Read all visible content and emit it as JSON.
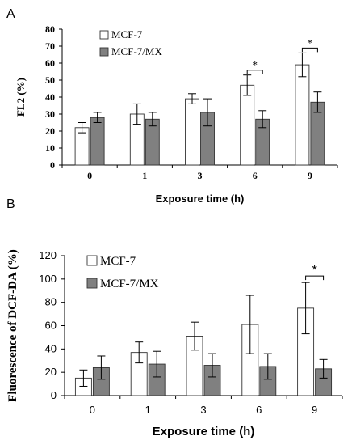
{
  "panels": {
    "a_label": "A",
    "b_label": "B"
  },
  "chart_data": [
    {
      "type": "bar",
      "title": "",
      "xlabel": "Exposure time (h)",
      "ylabel": "FL2 (%)",
      "categories": [
        "0",
        "1",
        "3",
        "6",
        "9"
      ],
      "ylim": [
        0,
        80
      ],
      "yticks": [
        0,
        10,
        20,
        30,
        40,
        50,
        60,
        70,
        80
      ],
      "grid": false,
      "legend": "top-left",
      "series": [
        {
          "name": "MCF-7",
          "color": "#ffffff",
          "values": [
            22,
            30,
            39,
            47,
            59
          ],
          "errors": [
            3,
            6,
            3,
            6,
            7
          ]
        },
        {
          "name": "MCF-7/MX",
          "color": "#808080",
          "values": [
            28,
            27,
            31,
            27,
            37
          ],
          "errors": [
            3,
            4,
            8,
            5,
            6
          ]
        }
      ],
      "annotations": [
        {
          "category": "6",
          "text": "*"
        },
        {
          "category": "9",
          "text": "*"
        }
      ]
    },
    {
      "type": "bar",
      "title": "",
      "xlabel": "Exposure time (h)",
      "ylabel": "Fluorescence of DCF-DA (%)",
      "categories": [
        "0",
        "1",
        "3",
        "6",
        "9"
      ],
      "ylim": [
        0,
        120
      ],
      "yticks": [
        0,
        20,
        40,
        60,
        80,
        100,
        120
      ],
      "grid": false,
      "legend": "top-left",
      "series": [
        {
          "name": "MCF-7",
          "color": "#ffffff",
          "values": [
            15,
            37,
            51,
            61,
            75
          ],
          "errors": [
            7,
            9,
            12,
            25,
            22
          ]
        },
        {
          "name": "MCF-7/MX",
          "color": "#808080",
          "values": [
            24,
            27,
            26,
            25,
            23
          ],
          "errors": [
            10,
            11,
            10,
            11,
            8
          ]
        }
      ],
      "annotations": [
        {
          "category": "9",
          "text": "*"
        }
      ]
    }
  ]
}
